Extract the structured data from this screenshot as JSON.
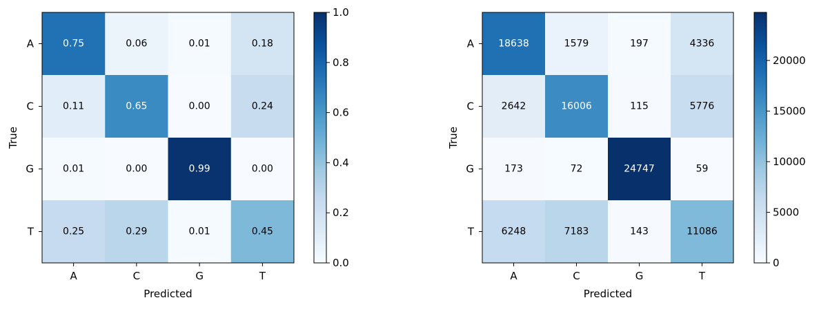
{
  "chart_data": [
    {
      "type": "heatmap",
      "xlabel": "Predicted",
      "ylabel": "True",
      "x_categories": [
        "A",
        "C",
        "G",
        "T"
      ],
      "y_categories": [
        "A",
        "C",
        "G",
        "T"
      ],
      "values": [
        [
          0.75,
          0.06,
          0.01,
          0.18
        ],
        [
          0.11,
          0.65,
          0.0,
          0.24
        ],
        [
          0.01,
          0.0,
          0.99,
          0.0
        ],
        [
          0.25,
          0.29,
          0.01,
          0.45
        ]
      ],
      "cell_labels": [
        [
          "0.75",
          "0.06",
          "0.01",
          "0.18"
        ],
        [
          "0.11",
          "0.65",
          "0.00",
          "0.24"
        ],
        [
          "0.01",
          "0.00",
          "0.99",
          "0.00"
        ],
        [
          "0.25",
          "0.29",
          "0.01",
          "0.45"
        ]
      ],
      "color_range": [
        0,
        1
      ],
      "colormap": "Blues",
      "colorbar_ticks": [
        "0.0",
        "0.2",
        "0.4",
        "0.6",
        "0.8",
        "1.0"
      ],
      "colorbar_tick_values": [
        0,
        0.2,
        0.4,
        0.6,
        0.8,
        1.0
      ]
    },
    {
      "type": "heatmap",
      "xlabel": "Predicted",
      "ylabel": "True",
      "x_categories": [
        "A",
        "C",
        "G",
        "T"
      ],
      "y_categories": [
        "A",
        "C",
        "G",
        "T"
      ],
      "values": [
        [
          18638,
          1579,
          197,
          4336
        ],
        [
          2642,
          16006,
          115,
          5776
        ],
        [
          173,
          72,
          24747,
          59
        ],
        [
          6248,
          7183,
          143,
          11086
        ]
      ],
      "cell_labels": [
        [
          "18638",
          "1579",
          "197",
          "4336"
        ],
        [
          "2642",
          "16006",
          "115",
          "5776"
        ],
        [
          "173",
          "72",
          "24747",
          "59"
        ],
        [
          "6248",
          "7183",
          "143",
          "11086"
        ]
      ],
      "color_range": [
        0,
        24747
      ],
      "colormap": "Blues",
      "colorbar_ticks": [
        "0",
        "5000",
        "10000",
        "15000",
        "20000"
      ],
      "colorbar_tick_values": [
        0,
        5000,
        10000,
        15000,
        20000
      ]
    }
  ],
  "colors": {
    "blues_low": "#f7fbff",
    "blues_high": "#08306b",
    "axis": "#000000",
    "text_dark": "#000000",
    "text_light": "#ffffff"
  }
}
